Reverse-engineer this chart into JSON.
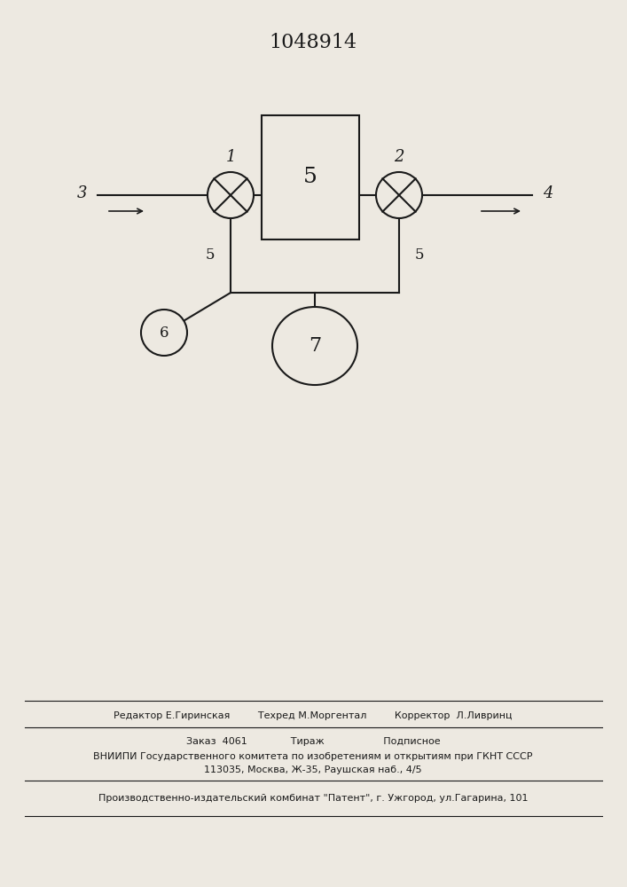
{
  "title": "1048914",
  "bg_color": "#ede9e1",
  "line_color": "#1a1a1a",
  "footer": {
    "editor_line": "Редактор Е.Гиринская         Техред М.Моргентал         Корректор  Л.Ливринц",
    "order_line": "Заказ  4061              Тираж                   Подписное",
    "vniiipi_line": "ВНИИПИ Государственного комитета по изобретениям и открытиям при ГКНТ СССР",
    "address_line": "113035, Москва, Ж-35, Раушская наб., 4/5",
    "publisher_line": "Производственно-издательский комбинат \"Патент\", г. Ужгород, ул.Гагарина, 101"
  }
}
